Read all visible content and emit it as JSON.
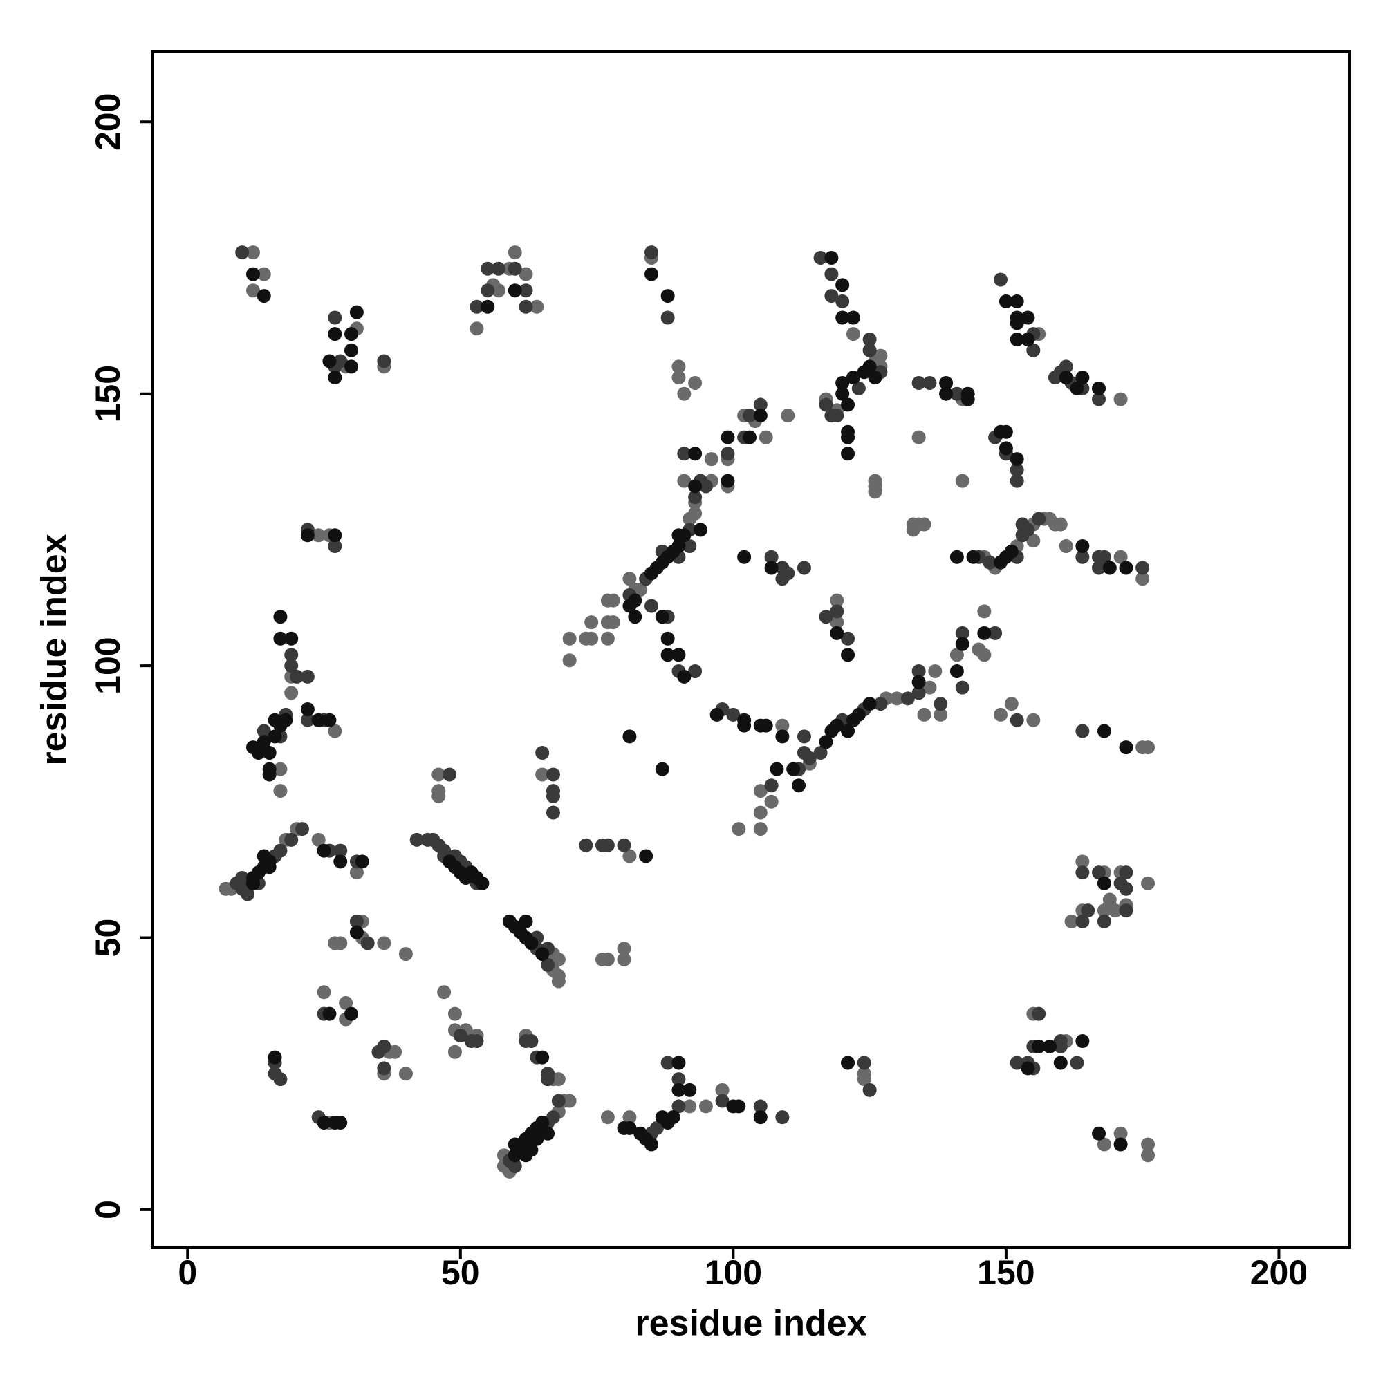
{
  "chart_data": {
    "type": "scatter",
    "xlabel": "residue index",
    "ylabel": "residue index",
    "xlim": [
      -6.5,
      213
    ],
    "ylim": [
      -7,
      213
    ],
    "xticks": [
      0,
      50,
      100,
      150,
      200
    ],
    "yticks": [
      0,
      50,
      100,
      150,
      200
    ],
    "grid": false,
    "series": [
      {
        "color": "#6a6a6a",
        "x": [
          12,
          14,
          12,
          31,
          29,
          36,
          53,
          56,
          59,
          57,
          60,
          62,
          64,
          85,
          90,
          90,
          91,
          93,
          122,
          127,
          117,
          119,
          126,
          127,
          126,
          126,
          126,
          142,
          134,
          142,
          156,
          171,
          70,
          70,
          73,
          74,
          74,
          77,
          77,
          78,
          77,
          78,
          81,
          82,
          83,
          92,
          93,
          96,
          93,
          91,
          96,
          99,
          99,
          102,
          104,
          106,
          110,
          119,
          119,
          109,
          114,
          107,
          105,
          105,
          105,
          101,
          128,
          130,
          137,
          138,
          135,
          136,
          141,
          146,
          145,
          146,
          149,
          151,
          155,
          175,
          176,
          146,
          148,
          152,
          155,
          155,
          157,
          158,
          159,
          160,
          161,
          171,
          175,
          133,
          134,
          133,
          135,
          7,
          8,
          18,
          20,
          24,
          31,
          67,
          67,
          68,
          68,
          68,
          27,
          17,
          17,
          19,
          19,
          24,
          26,
          27,
          28,
          32,
          32,
          36,
          40,
          25,
          29,
          29,
          37,
          38,
          36,
          40,
          26,
          46,
          46,
          46,
          47,
          49,
          49,
          49,
          51,
          53,
          65,
          62,
          67,
          68,
          58,
          58,
          59,
          68,
          69,
          70,
          81,
          76,
          77,
          80,
          80,
          77,
          81,
          92,
          95,
          98,
          124,
          124,
          161,
          155,
          162,
          164,
          164,
          168,
          168,
          169,
          170,
          171,
          172,
          176,
          169,
          168,
          171,
          176,
          176
        ],
        "y": [
          176,
          172,
          169,
          162,
          155,
          155,
          162,
          170,
          173,
          169,
          176,
          172,
          166,
          175,
          155,
          153,
          150,
          152,
          161,
          157,
          149,
          147,
          156,
          155,
          134,
          132,
          133,
          149,
          142,
          134,
          161,
          149,
          105,
          101,
          105,
          105,
          108,
          105,
          108,
          108,
          112,
          112,
          116,
          114,
          114,
          127,
          130,
          134,
          128,
          134,
          138,
          138,
          133,
          146,
          145,
          142,
          146,
          112,
          108,
          89,
          82,
          75,
          77,
          73,
          70,
          70,
          94,
          94,
          99,
          91,
          91,
          96,
          102,
          110,
          103,
          102,
          91,
          93,
          90,
          85,
          85,
          120,
          118,
          122,
          126,
          123,
          127,
          127,
          126,
          126,
          122,
          120,
          116,
          126,
          126,
          125,
          126,
          59,
          59,
          68,
          70,
          68,
          62,
          47,
          44,
          46,
          43,
          42,
          88,
          81,
          77,
          98,
          95,
          124,
          124,
          49,
          49,
          53,
          50,
          49,
          47,
          40,
          38,
          35,
          29,
          29,
          25,
          25,
          16,
          80,
          77,
          76,
          40,
          36,
          33,
          29,
          33,
          32,
          80,
          32,
          24,
          24,
          10,
          8,
          7,
          18,
          20,
          20,
          65,
          46,
          46,
          46,
          48,
          17,
          17,
          19,
          19,
          22,
          25,
          24,
          31,
          36,
          53,
          55,
          64,
          62,
          55,
          56,
          55,
          62,
          56,
          60,
          57,
          12,
          14,
          12,
          10
        ]
      },
      {
        "color": "#3a3a3a",
        "x": [
          10,
          27,
          27,
          28,
          36,
          53,
          55,
          55,
          57,
          60,
          62,
          62,
          85,
          88,
          116,
          118,
          118,
          120,
          125,
          125,
          118,
          123,
          127,
          117,
          119,
          134,
          136,
          141,
          149,
          155,
          155,
          159,
          160,
          161,
          162,
          164,
          167,
          148,
          150,
          152,
          152,
          81,
          84,
          87,
          92,
          93,
          94,
          95,
          92,
          90,
          91,
          99,
          102,
          103,
          105,
          85,
          88,
          90,
          93,
          107,
          109,
          109,
          110,
          113,
          117,
          119,
          121,
          98,
          100,
          113,
          113,
          112,
          107,
          114,
          116,
          120,
          124,
          127,
          132,
          134,
          134,
          138,
          142,
          142,
          148,
          152,
          164,
          145,
          147,
          152,
          153,
          153,
          154,
          156,
          164,
          167,
          168,
          175,
          167,
          9,
          10,
          10,
          11,
          16,
          17,
          19,
          21,
          26,
          28,
          31,
          13,
          11,
          42,
          44,
          45,
          46,
          47,
          47,
          53,
          49,
          50,
          51,
          64,
          64,
          66,
          66,
          22,
          25,
          14,
          17,
          18,
          19,
          19,
          20,
          22,
          22,
          27,
          31,
          33,
          25,
          35,
          36,
          36,
          16,
          16,
          17,
          24,
          48,
          50,
          52,
          53,
          65,
          67,
          67,
          67,
          67,
          62,
          63,
          64,
          66,
          66,
          59,
          60,
          66,
          67,
          68,
          73,
          76,
          77,
          80,
          85,
          86,
          88,
          90,
          90,
          98,
          105,
          109,
          124,
          125,
          152,
          154,
          155,
          155,
          156,
          160,
          160,
          163,
          164,
          165,
          164,
          167,
          168,
          171,
          172,
          172,
          172
        ],
        "y": [
          176,
          164,
          155,
          156,
          156,
          166,
          169,
          173,
          173,
          173,
          169,
          166,
          176,
          164,
          175,
          172,
          168,
          167,
          160,
          158,
          146,
          151,
          154,
          148,
          146,
          152,
          152,
          150,
          171,
          161,
          158,
          153,
          154,
          155,
          152,
          151,
          149,
          142,
          139,
          136,
          134,
          113,
          116,
          121,
          125,
          131,
          134,
          133,
          122,
          120,
          139,
          139,
          142,
          146,
          148,
          111,
          109,
          99,
          99,
          120,
          118,
          116,
          117,
          118,
          109,
          110,
          105,
          92,
          91,
          87,
          84,
          81,
          78,
          83,
          84,
          90,
          92,
          93,
          94,
          95,
          99,
          93,
          106,
          96,
          106,
          90,
          88,
          120,
          119,
          120,
          124,
          126,
          125,
          127,
          120,
          120,
          120,
          118,
          118,
          60,
          59,
          61,
          60,
          65,
          66,
          68,
          70,
          66,
          66,
          64,
          60,
          58,
          68,
          68,
          68,
          67,
          66,
          65,
          60,
          65,
          64,
          63,
          50,
          48,
          48,
          45,
          90,
          90,
          88,
          87,
          91,
          102,
          100,
          98,
          98,
          125,
          122,
          53,
          49,
          36,
          29,
          30,
          26,
          27,
          25,
          24,
          17,
          80,
          32,
          31,
          31,
          84,
          80,
          76,
          77,
          73,
          31,
          31,
          28,
          25,
          24,
          9,
          8,
          16,
          17,
          20,
          67,
          67,
          67,
          67,
          14,
          15,
          27,
          24,
          19,
          20,
          19,
          17,
          27,
          22,
          27,
          27,
          26,
          30,
          36,
          31,
          30,
          27,
          53,
          55,
          62,
          62,
          53,
          60,
          62,
          59,
          55
        ]
      },
      {
        "color": "#111111",
        "x": [
          12,
          14,
          27,
          31,
          30,
          30,
          26,
          27,
          30,
          55,
          60,
          85,
          88,
          118,
          120,
          120,
          122,
          120,
          120,
          121,
          122,
          124,
          125,
          126,
          121,
          121,
          121,
          139,
          139,
          143,
          143,
          150,
          152,
          152,
          152,
          154,
          152,
          154,
          161,
          163,
          164,
          167,
          149,
          150,
          150,
          152,
          82,
          85,
          86,
          87,
          88,
          89,
          90,
          90,
          91,
          93,
          94,
          93,
          99,
          99,
          103,
          105,
          81,
          82,
          87,
          88,
          88,
          90,
          91,
          102,
          107,
          119,
          121,
          97,
          102,
          102,
          105,
          106,
          109,
          111,
          108,
          112,
          117,
          118,
          119,
          121,
          122,
          123,
          125,
          134,
          141,
          142,
          146,
          168,
          172,
          141,
          144,
          149,
          150,
          151,
          164,
          169,
          172,
          12,
          12,
          13,
          14,
          15,
          25,
          28,
          32,
          14,
          15,
          48,
          49,
          50,
          51,
          52,
          53,
          54,
          59,
          60,
          61,
          62,
          62,
          63,
          65,
          22,
          24,
          26,
          12,
          13,
          14,
          15,
          16,
          16,
          17,
          18,
          15,
          15,
          17,
          17,
          19,
          22,
          27,
          31,
          26,
          30,
          16,
          27,
          28,
          25,
          65,
          60,
          61,
          61,
          62,
          62,
          63,
          64,
          64,
          65,
          66,
          60,
          63,
          84,
          80,
          81,
          83,
          84,
          85,
          87,
          88,
          89,
          90,
          90,
          92,
          100,
          101,
          105,
          81,
          87,
          121,
          154,
          156,
          158,
          160,
          164,
          168,
          167,
          171
        ],
        "y": [
          172,
          168,
          161,
          165,
          161,
          158,
          156,
          153,
          155,
          166,
          169,
          172,
          168,
          175,
          170,
          164,
          164,
          150,
          152,
          148,
          153,
          154,
          155,
          153,
          143,
          142,
          139,
          152,
          150,
          150,
          149,
          167,
          167,
          164,
          163,
          164,
          160,
          160,
          153,
          151,
          153,
          151,
          143,
          143,
          140,
          138,
          112,
          117,
          118,
          119,
          120,
          121,
          122,
          124,
          124,
          133,
          125,
          139,
          142,
          134,
          142,
          146,
          111,
          109,
          109,
          105,
          102,
          102,
          98,
          120,
          118,
          106,
          102,
          91,
          90,
          89,
          89,
          89,
          87,
          81,
          81,
          78,
          86,
          88,
          89,
          88,
          90,
          91,
          93,
          97,
          99,
          104,
          106,
          88,
          85,
          120,
          120,
          119,
          120,
          121,
          122,
          118,
          118,
          60,
          61,
          62,
          63,
          64,
          66,
          64,
          64,
          65,
          63,
          64,
          63,
          62,
          61,
          62,
          61,
          60,
          53,
          52,
          51,
          53,
          50,
          49,
          47,
          92,
          90,
          90,
          85,
          84,
          86,
          84,
          87,
          90,
          89,
          90,
          81,
          80,
          109,
          105,
          105,
          124,
          124,
          51,
          36,
          36,
          28,
          16,
          16,
          16,
          28,
          10,
          11,
          12,
          13,
          10,
          14,
          15,
          13,
          16,
          14,
          12,
          11,
          65,
          15,
          15,
          14,
          13,
          12,
          17,
          16,
          17,
          27,
          22,
          22,
          19,
          19,
          17,
          87,
          81,
          27,
          26,
          30,
          30,
          27,
          31,
          60,
          14,
          12
        ]
      }
    ]
  }
}
